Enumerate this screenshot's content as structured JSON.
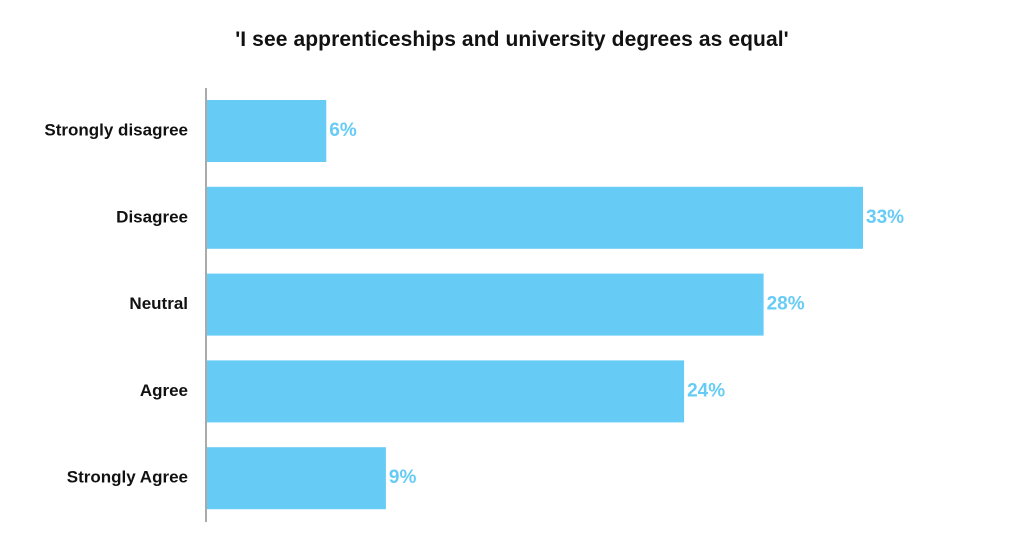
{
  "chart_data": {
    "type": "bar",
    "orientation": "horizontal",
    "title": "'I see apprenticeships and university degrees as equal'",
    "categories": [
      "Strongly disagree",
      "Disagree",
      "Neutral",
      "Agree",
      "Strongly Agree"
    ],
    "values": [
      6,
      33,
      28,
      24,
      9
    ],
    "value_labels": [
      "6%",
      "33%",
      "28%",
      "24%",
      "9%"
    ],
    "xlim": [
      0,
      40
    ],
    "xlabel": "",
    "ylabel": "",
    "grid": false,
    "legend": "none",
    "colors": {
      "bar": "#66ccf5",
      "value_label": "#66ccf5",
      "category_label": "#111111",
      "axis": "#555555"
    }
  }
}
